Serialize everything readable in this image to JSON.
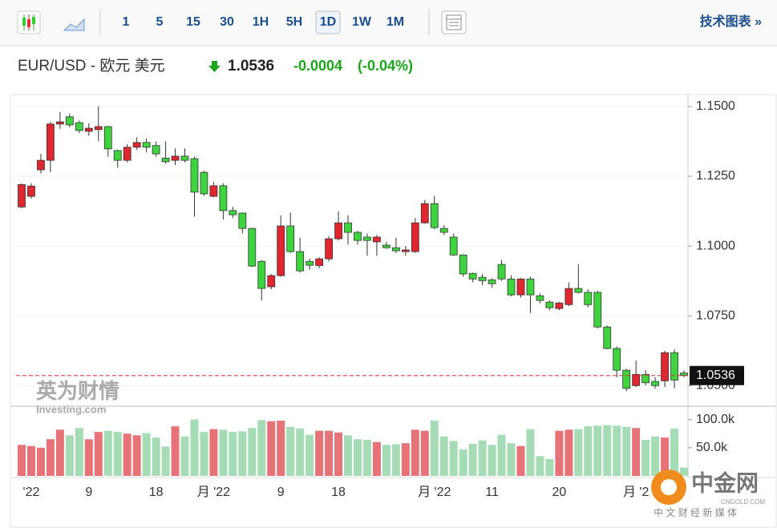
{
  "toolbar": {
    "intervals": [
      "1",
      "5",
      "15",
      "30",
      "1H",
      "5H",
      "1D",
      "1W",
      "1M"
    ],
    "active": 6,
    "tech": "技术图表 »"
  },
  "header": {
    "symbol": "EUR/USD - 欧元 美元",
    "price": 1.0536,
    "change": -0.0004,
    "change_pct": "(-0.04%)"
  },
  "chart_data": {
    "type": "candlestick",
    "categories": [
      null,
      "'22",
      null,
      null,
      null,
      null,
      null,
      "9",
      null,
      null,
      null,
      null,
      null,
      null,
      "18",
      null,
      null,
      null,
      null,
      null,
      "月 '22",
      null,
      null,
      null,
      null,
      null,
      null,
      "9",
      null,
      null,
      null,
      null,
      null,
      "18",
      null,
      null,
      null,
      null,
      null,
      null,
      null,
      null,
      null,
      "月 '22",
      null,
      null,
      null,
      null,
      null,
      "11",
      null,
      null,
      null,
      null,
      null,
      null,
      "20",
      null,
      null,
      null,
      null,
      null,
      null,
      null,
      "月 '2",
      null,
      null,
      null,
      null,
      null
    ],
    "open": [
      1.114,
      1.1178,
      1.1273,
      1.1307,
      1.1437,
      1.1463,
      1.1442,
      1.1411,
      1.1417,
      1.1428,
      1.1342,
      1.1307,
      1.1354,
      1.1371,
      1.136,
      1.1315,
      1.1307,
      1.1322,
      1.1313,
      1.1264,
      1.1178,
      1.1216,
      1.1127,
      1.1118,
      1.1063,
      1.0945,
      1.0854,
      1.0894,
      1.1072,
      1.098,
      1.0945,
      1.093,
      1.0954,
      1.1026,
      1.1083,
      1.1049,
      1.1032,
      1.1015,
      1.1003,
      1.0994,
      1.098,
      1.098,
      1.1083,
      1.1152,
      1.1063,
      1.1032,
      1.0968,
      1.0902,
      1.0888,
      1.0879,
      1.0934,
      1.0882,
      1.0825,
      1.0882,
      1.0822,
      1.0799,
      1.0776,
      1.079,
      1.0848,
      1.0834,
      1.0834,
      1.071,
      1.0633,
      1.0555,
      1.05,
      1.054,
      1.0515,
      1.0517,
      1.0618,
      1.0545
    ],
    "high": [
      1.1225,
      1.1225,
      1.133,
      1.1445,
      1.148,
      1.1475,
      1.145,
      1.144,
      1.15,
      1.143,
      1.1345,
      1.1365,
      1.139,
      1.1385,
      1.1375,
      1.1375,
      1.135,
      1.135,
      1.132,
      1.127,
      1.123,
      1.1225,
      1.114,
      1.112,
      1.1065,
      1.095,
      1.09,
      1.111,
      1.112,
      1.103,
      1.0955,
      1.096,
      1.1035,
      1.1125,
      1.111,
      1.1055,
      1.1045,
      1.104,
      1.1015,
      1.103,
      1.1,
      1.11,
      1.1165,
      1.118,
      1.1075,
      1.1045,
      1.097,
      1.0905,
      1.09,
      1.0885,
      1.095,
      1.0895,
      1.0885,
      1.089,
      1.083,
      1.0805,
      1.08,
      1.087,
      1.0935,
      1.0845,
      1.084,
      1.0715,
      1.064,
      1.056,
      1.059,
      1.0555,
      1.053,
      1.0625,
      1.063,
      1.0555
    ],
    "low": [
      1.1135,
      1.117,
      1.126,
      1.1265,
      1.142,
      1.1425,
      1.1405,
      1.1395,
      1.1375,
      1.132,
      1.128,
      1.13,
      1.1345,
      1.1335,
      1.132,
      1.1295,
      1.129,
      1.13,
      1.1105,
      1.118,
      1.1175,
      1.1095,
      1.11,
      1.1045,
      1.0925,
      1.0805,
      1.0845,
      1.089,
      1.0975,
      1.0905,
      1.0915,
      1.092,
      1.0945,
      1.102,
      1.1005,
      1.1005,
      1.0965,
      1.0965,
      1.099,
      1.0975,
      1.0965,
      1.0975,
      1.108,
      1.106,
      1.104,
      1.0965,
      1.089,
      1.087,
      1.086,
      1.085,
      1.0875,
      1.082,
      1.0815,
      1.076,
      1.0795,
      1.077,
      1.077,
      1.0785,
      1.083,
      1.078,
      1.0705,
      1.063,
      1.053,
      1.048,
      1.0495,
      1.05,
      1.049,
      1.0495,
      1.049,
      1.053
    ],
    "close": [
      1.122,
      1.1215,
      1.1307,
      1.1437,
      1.1445,
      1.1434,
      1.1414,
      1.1422,
      1.1428,
      1.1348,
      1.1307,
      1.1354,
      1.1371,
      1.1354,
      1.133,
      1.1302,
      1.1322,
      1.1307,
      1.1193,
      1.1187,
      1.1216,
      1.1127,
      1.1112,
      1.1063,
      1.0928,
      1.0848,
      1.0894,
      1.1072,
      1.098,
      1.0911,
      1.0931,
      1.0954,
      1.1026,
      1.1083,
      1.1049,
      1.102,
      1.102,
      1.1032,
      1.0994,
      1.0983,
      1.0986,
      1.1083,
      1.1152,
      1.1066,
      1.1049,
      1.0968,
      1.09,
      1.0882,
      1.0876,
      1.0865,
      1.0882,
      1.0825,
      1.0882,
      1.0825,
      1.0805,
      1.0779,
      1.0796,
      1.0848,
      1.0834,
      1.079,
      1.071,
      1.0633,
      1.0555,
      1.049,
      1.054,
      1.051,
      1.05,
      1.0618,
      1.052,
      1.0536
    ],
    "up_color": "#e0262f",
    "down_color": "#3fd43f",
    "ylim": [
      1.0429,
      1.1537
    ],
    "yticks": [
      {
        "value": 1.15,
        "label": "1.1500"
      },
      {
        "value": 1.125,
        "label": "1.1250"
      },
      {
        "value": 1.1,
        "label": "1.1000"
      },
      {
        "value": 1.075,
        "label": "1.0750"
      },
      {
        "value": 1.05,
        "label": "1.0500"
      }
    ],
    "grid": true,
    "last": 1.0536,
    "volume": {
      "values": [
        55000,
        53000,
        50000,
        65000,
        82000,
        72000,
        85000,
        65000,
        78000,
        80000,
        78000,
        75000,
        72000,
        76000,
        68000,
        52000,
        88000,
        70000,
        100000,
        78000,
        83000,
        82000,
        78000,
        79000,
        85000,
        99000,
        97000,
        98000,
        87000,
        84000,
        73000,
        80000,
        80000,
        77000,
        72000,
        65000,
        64000,
        60000,
        55000,
        56000,
        58000,
        82000,
        80000,
        98000,
        70000,
        62000,
        47000,
        57000,
        63000,
        55000,
        73000,
        58000,
        53000,
        83000,
        35000,
        30000,
        80000,
        82000,
        83000,
        88000,
        89000,
        90000,
        89000,
        87000,
        85000,
        64000,
        70000,
        68000,
        84000,
        15000
      ],
      "up_color": "#e57378",
      "down_color": "#a6dcb5",
      "ylim": [
        0,
        125000
      ],
      "yticks": [
        {
          "value": 50000,
          "label": "50.0k"
        },
        {
          "value": 100000,
          "label": "100.0k"
        }
      ]
    }
  },
  "watermarks": {
    "left": "英为财情",
    "left_sub": "Investing.com",
    "right": "中金网",
    "right_sub": "CNGOLD.COM",
    "right_tag": "中 文 财 经 新 媒 体"
  }
}
